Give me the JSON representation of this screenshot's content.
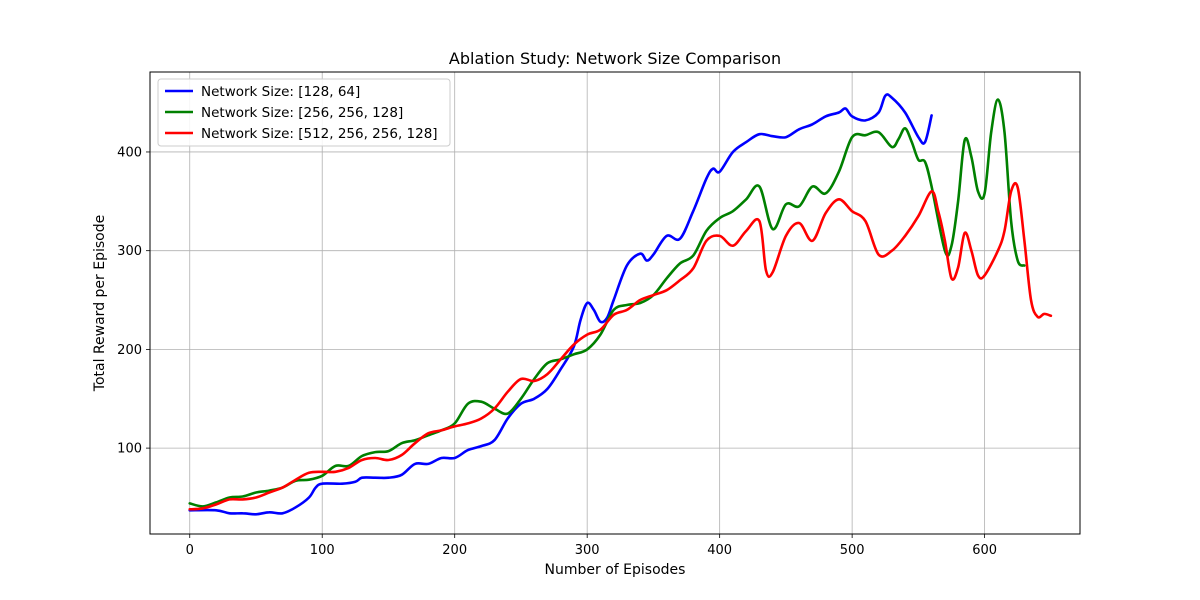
{
  "chart_data": {
    "type": "line",
    "title": "Ablation Study: Network Size Comparison",
    "xlabel": "Number of Episodes",
    "ylabel": "Total Reward per Episode",
    "xlim": [
      -30,
      672
    ],
    "ylim": [
      13,
      481
    ],
    "xticks": [
      0,
      100,
      200,
      300,
      400,
      500,
      600
    ],
    "yticks": [
      100,
      200,
      300,
      400
    ],
    "grid": true,
    "legend_position": "top-left",
    "series": [
      {
        "name": "Network Size: [128, 64]",
        "color": "#0000ff",
        "points": [
          [
            0,
            37
          ],
          [
            20,
            37
          ],
          [
            30,
            34
          ],
          [
            40,
            34
          ],
          [
            50,
            33
          ],
          [
            60,
            35
          ],
          [
            70,
            34
          ],
          [
            80,
            40
          ],
          [
            90,
            50
          ],
          [
            95,
            60
          ],
          [
            100,
            64
          ],
          [
            115,
            64
          ],
          [
            125,
            66
          ],
          [
            130,
            70
          ],
          [
            140,
            70
          ],
          [
            150,
            70
          ],
          [
            160,
            73
          ],
          [
            170,
            84
          ],
          [
            180,
            84
          ],
          [
            190,
            90
          ],
          [
            200,
            90
          ],
          [
            210,
            98
          ],
          [
            220,
            102
          ],
          [
            230,
            108
          ],
          [
            240,
            130
          ],
          [
            250,
            145
          ],
          [
            260,
            150
          ],
          [
            270,
            160
          ],
          [
            280,
            180
          ],
          [
            290,
            203
          ],
          [
            295,
            230
          ],
          [
            300,
            247
          ],
          [
            305,
            240
          ],
          [
            310,
            228
          ],
          [
            315,
            232
          ],
          [
            320,
            250
          ],
          [
            330,
            285
          ],
          [
            340,
            297
          ],
          [
            345,
            290
          ],
          [
            350,
            296
          ],
          [
            360,
            315
          ],
          [
            370,
            312
          ],
          [
            380,
            340
          ],
          [
            390,
            373
          ],
          [
            395,
            383
          ],
          [
            400,
            380
          ],
          [
            410,
            400
          ],
          [
            420,
            410
          ],
          [
            430,
            418
          ],
          [
            440,
            416
          ],
          [
            450,
            415
          ],
          [
            460,
            423
          ],
          [
            470,
            428
          ],
          [
            480,
            436
          ],
          [
            490,
            440
          ],
          [
            495,
            444
          ],
          [
            500,
            436
          ],
          [
            510,
            432
          ],
          [
            520,
            440
          ],
          [
            525,
            457
          ],
          [
            530,
            455
          ],
          [
            540,
            440
          ],
          [
            550,
            415
          ],
          [
            555,
            410
          ],
          [
            560,
            437
          ]
        ]
      },
      {
        "name": "Network Size: [256, 256, 128]",
        "color": "#008000",
        "points": [
          [
            0,
            44
          ],
          [
            10,
            41
          ],
          [
            20,
            45
          ],
          [
            30,
            50
          ],
          [
            40,
            51
          ],
          [
            50,
            55
          ],
          [
            60,
            57
          ],
          [
            70,
            60
          ],
          [
            80,
            67
          ],
          [
            90,
            68
          ],
          [
            100,
            72
          ],
          [
            110,
            82
          ],
          [
            120,
            82
          ],
          [
            130,
            92
          ],
          [
            140,
            96
          ],
          [
            150,
            97
          ],
          [
            160,
            105
          ],
          [
            170,
            108
          ],
          [
            180,
            113
          ],
          [
            190,
            118
          ],
          [
            200,
            125
          ],
          [
            210,
            145
          ],
          [
            220,
            147
          ],
          [
            230,
            140
          ],
          [
            240,
            135
          ],
          [
            250,
            150
          ],
          [
            260,
            170
          ],
          [
            270,
            186
          ],
          [
            280,
            190
          ],
          [
            290,
            195
          ],
          [
            300,
            200
          ],
          [
            310,
            215
          ],
          [
            320,
            240
          ],
          [
            330,
            245
          ],
          [
            340,
            247
          ],
          [
            350,
            255
          ],
          [
            360,
            272
          ],
          [
            370,
            287
          ],
          [
            380,
            295
          ],
          [
            390,
            320
          ],
          [
            400,
            333
          ],
          [
            410,
            340
          ],
          [
            420,
            352
          ],
          [
            430,
            365
          ],
          [
            440,
            322
          ],
          [
            450,
            347
          ],
          [
            460,
            345
          ],
          [
            470,
            365
          ],
          [
            480,
            358
          ],
          [
            490,
            380
          ],
          [
            500,
            415
          ],
          [
            510,
            417
          ],
          [
            520,
            420
          ],
          [
            530,
            405
          ],
          [
            535,
            413
          ],
          [
            540,
            424
          ],
          [
            545,
            410
          ],
          [
            550,
            392
          ],
          [
            555,
            390
          ],
          [
            560,
            365
          ],
          [
            570,
            300
          ],
          [
            575,
            305
          ],
          [
            580,
            350
          ],
          [
            585,
            412
          ],
          [
            590,
            395
          ],
          [
            595,
            360
          ],
          [
            600,
            358
          ],
          [
            605,
            420
          ],
          [
            610,
            453
          ],
          [
            615,
            420
          ],
          [
            620,
            330
          ],
          [
            625,
            290
          ],
          [
            630,
            285
          ]
        ]
      },
      {
        "name": "Network Size: [512, 256, 256, 128]",
        "color": "#ff0000",
        "points": [
          [
            0,
            38
          ],
          [
            10,
            39
          ],
          [
            20,
            43
          ],
          [
            30,
            48
          ],
          [
            40,
            48
          ],
          [
            50,
            50
          ],
          [
            60,
            55
          ],
          [
            70,
            60
          ],
          [
            80,
            68
          ],
          [
            90,
            75
          ],
          [
            100,
            76
          ],
          [
            110,
            76
          ],
          [
            120,
            80
          ],
          [
            130,
            88
          ],
          [
            140,
            90
          ],
          [
            150,
            88
          ],
          [
            160,
            93
          ],
          [
            170,
            105
          ],
          [
            180,
            115
          ],
          [
            190,
            118
          ],
          [
            200,
            122
          ],
          [
            210,
            125
          ],
          [
            220,
            130
          ],
          [
            230,
            140
          ],
          [
            240,
            157
          ],
          [
            250,
            170
          ],
          [
            260,
            168
          ],
          [
            270,
            175
          ],
          [
            280,
            190
          ],
          [
            290,
            205
          ],
          [
            300,
            215
          ],
          [
            310,
            220
          ],
          [
            320,
            235
          ],
          [
            330,
            240
          ],
          [
            340,
            250
          ],
          [
            350,
            255
          ],
          [
            360,
            260
          ],
          [
            370,
            270
          ],
          [
            380,
            282
          ],
          [
            390,
            310
          ],
          [
            400,
            315
          ],
          [
            410,
            305
          ],
          [
            420,
            320
          ],
          [
            430,
            330
          ],
          [
            435,
            280
          ],
          [
            440,
            278
          ],
          [
            450,
            315
          ],
          [
            460,
            328
          ],
          [
            470,
            310
          ],
          [
            480,
            338
          ],
          [
            490,
            352
          ],
          [
            500,
            340
          ],
          [
            510,
            330
          ],
          [
            520,
            296
          ],
          [
            530,
            300
          ],
          [
            540,
            315
          ],
          [
            550,
            335
          ],
          [
            560,
            360
          ],
          [
            565,
            340
          ],
          [
            570,
            310
          ],
          [
            575,
            272
          ],
          [
            580,
            283
          ],
          [
            585,
            318
          ],
          [
            590,
            300
          ],
          [
            595,
            275
          ],
          [
            600,
            275
          ],
          [
            610,
            300
          ],
          [
            615,
            320
          ],
          [
            620,
            360
          ],
          [
            625,
            364
          ],
          [
            630,
            310
          ],
          [
            635,
            250
          ],
          [
            640,
            233
          ],
          [
            645,
            236
          ],
          [
            650,
            234
          ]
        ]
      }
    ]
  }
}
